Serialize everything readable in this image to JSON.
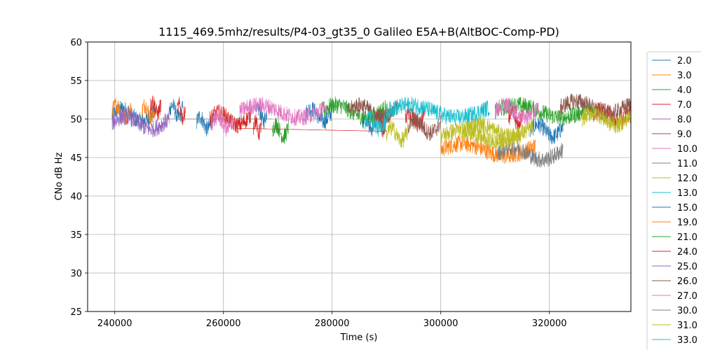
{
  "chart_data": {
    "type": "line",
    "title": "1115_469.5mhz/results/P4-03_gt35_0 Galileo E5A+B(AltBOC-Comp-PD)",
    "xlabel": "Time (s)",
    "ylabel": "CNo dB Hz",
    "xlim": [
      235000,
      335000
    ],
    "ylim": [
      25,
      60
    ],
    "xticks": [
      240000,
      260000,
      280000,
      300000,
      320000
    ],
    "yticks": [
      25,
      30,
      35,
      40,
      45,
      50,
      55,
      60
    ],
    "grid": true,
    "legend_position": "right-outside",
    "series": [
      {
        "name": "2.0",
        "color": "#1f77b4",
        "segments": [
          [
            [
              239500,
              50.5
            ],
            [
              247500,
              50.5
            ]
          ],
          [
            [
              250000,
              51.0
            ],
            [
              252500,
              51.0
            ]
          ],
          [
            [
              255000,
              49.5
            ],
            [
              258000,
              49.5
            ]
          ],
          [
            [
              266000,
              50.5
            ],
            [
              268000,
              50.5
            ]
          ],
          [
            [
              275000,
              50.5
            ],
            [
              280000,
              50.5
            ]
          ],
          [
            [
              285500,
              49.5
            ],
            [
              288000,
              49.5
            ]
          ],
          [
            [
              316500,
              48.5
            ],
            [
              322500,
              48.5
            ]
          ]
        ]
      },
      {
        "name": "3.0",
        "color": "#ff7f0e",
        "segments": [
          [
            [
              239500,
              51.0
            ],
            [
              243000,
              51.0
            ]
          ],
          [
            [
              245000,
              51.0
            ],
            [
              247500,
              51.0
            ]
          ],
          [
            [
              300000,
              46.0
            ],
            [
              317500,
              46.0
            ]
          ]
        ]
      },
      {
        "name": "4.0",
        "color": "#2ca02c",
        "segments": [
          [
            [
              269000,
              48.5
            ],
            [
              272000,
              48.5
            ]
          ],
          [
            [
              278000,
              51.0
            ],
            [
              290000,
              51.0
            ]
          ],
          [
            [
              310000,
              51.0
            ],
            [
              328000,
              51.0
            ]
          ]
        ]
      },
      {
        "name": "7.0",
        "color": "#d62728",
        "segments": [
          [
            [
              246500,
              51.5
            ],
            [
              248500,
              51.5
            ]
          ],
          [
            [
              251500,
              51.0
            ],
            [
              253000,
              51.0
            ]
          ],
          [
            [
              257500,
              50.0
            ],
            [
              265000,
              50.0
            ]
          ],
          [
            [
              265500,
              49.0
            ],
            [
              267000,
              49.0
            ]
          ],
          [
            [
              288000,
              49.5
            ],
            [
              290000,
              49.5
            ]
          ],
          [
            [
              293500,
              50.0
            ],
            [
              297000,
              50.0
            ]
          ],
          [
            [
              312500,
              50.0
            ],
            [
              315000,
              50.0
            ]
          ],
          [
            [
              328000,
              50.5
            ],
            [
              335000,
              50.5
            ]
          ]
        ]
      },
      {
        "name": "8.0",
        "color": "#9467bd",
        "segments": [
          [
            [
              239500,
              49.5
            ],
            [
              250000,
              49.5
            ]
          ]
        ]
      },
      {
        "name": "9.0",
        "color": "#8c564b",
        "segments": [
          [
            [
              283000,
              51.0
            ],
            [
              292000,
              51.0
            ]
          ],
          [
            [
              294000,
              49.0
            ],
            [
              300000,
              49.0
            ]
          ],
          [
            [
              322000,
              51.5
            ],
            [
              335000,
              51.5
            ]
          ]
        ]
      },
      {
        "name": "10.0",
        "color": "#e377c2",
        "segments": [
          [
            [
              258000,
              49.5
            ],
            [
              262000,
              49.5
            ]
          ],
          [
            [
              263000,
              51.0
            ],
            [
              279000,
              51.0
            ]
          ],
          [
            [
              310000,
              51.0
            ],
            [
              318000,
              51.0
            ]
          ]
        ]
      },
      {
        "name": "11.0",
        "color": "#7f7f7f",
        "segments": [
          [
            [
              248500,
              50.0
            ],
            [
              269000,
              50.0
            ]
          ],
          [
            [
              310500,
              45.5
            ],
            [
              322500,
              45.5
            ]
          ]
        ]
      },
      {
        "name": "12.0",
        "color": "#bcbd22",
        "segments": [
          [
            [
              290000,
              48.0
            ],
            [
              294000,
              48.0
            ]
          ],
          [
            [
              304000,
              48.5
            ],
            [
              317000,
              48.5
            ]
          ],
          [
            [
              326000,
              50.0
            ],
            [
              335000,
              50.0
            ]
          ]
        ]
      },
      {
        "name": "13.0",
        "color": "#17becf",
        "segments": [
          [
            [
              286000,
              49.5
            ],
            [
              290000,
              49.5
            ]
          ]
        ]
      },
      {
        "name": "15.0",
        "color": "#1f77b4",
        "segments": []
      },
      {
        "name": "19.0",
        "color": "#ff7f0e",
        "segments": []
      },
      {
        "name": "21.0",
        "color": "#2ca02c",
        "segments": []
      },
      {
        "name": "24.0",
        "color": "#d62728",
        "segments": [
          [
            [
              262000,
              48.8
            ],
            [
              290000,
              48.4
            ]
          ]
        ]
      },
      {
        "name": "25.0",
        "color": "#9467bd",
        "segments": []
      },
      {
        "name": "26.0",
        "color": "#8c564b",
        "segments": []
      },
      {
        "name": "27.0",
        "color": "#e377c2",
        "segments": []
      },
      {
        "name": "30.0",
        "color": "#7f7f7f",
        "segments": []
      },
      {
        "name": "31.0",
        "color": "#bcbd22",
        "segments": [
          [
            [
              300000,
              47.7
            ],
            [
              315000,
              47.8
            ]
          ]
        ]
      },
      {
        "name": "33.0",
        "color": "#17becf",
        "segments": [
          [
            [
              290000,
              51.0
            ],
            [
              309000,
              51.0
            ]
          ]
        ]
      }
    ]
  }
}
